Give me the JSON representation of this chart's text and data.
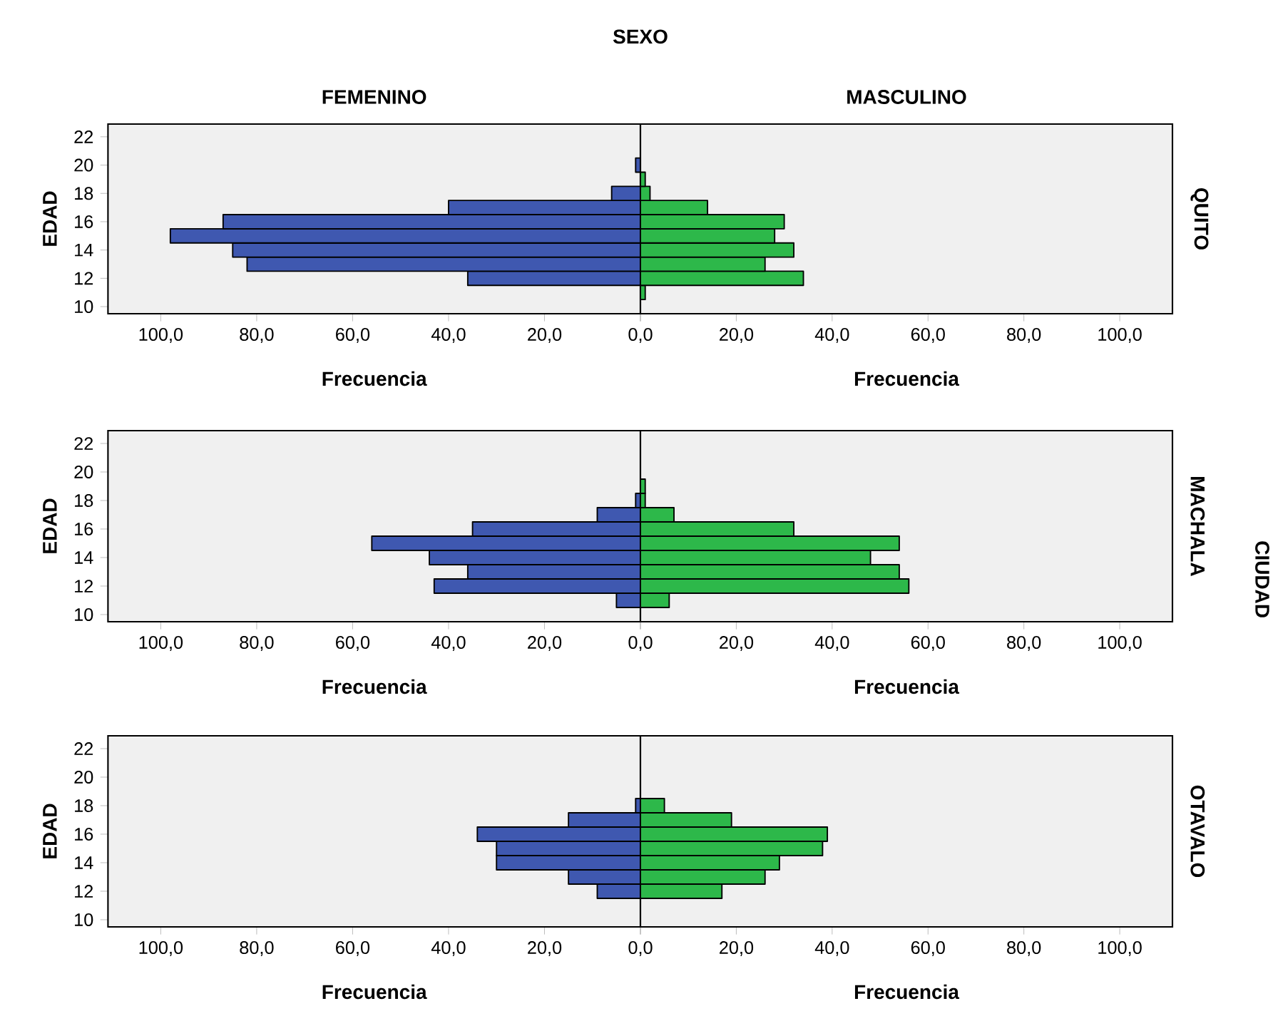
{
  "chart_data": [
    {
      "type": "histogram",
      "orientation": "horizontal",
      "title": "FEMENINO",
      "xlabel": "Frecuencia",
      "ylabel": "EDAD",
      "annotations": [
        "SEXO"
      ],
      "color": "#3f58b0",
      "bins": [
        10.5,
        11.5,
        12.5,
        13.5,
        14.5,
        15.5,
        16.5,
        17.5,
        18.5,
        19.5,
        20.5
      ],
      "values": [
        0,
        36,
        82,
        85,
        98,
        87,
        40,
        6,
        0,
        1
      ],
      "xlim": [
        111,
        0
      ],
      "xticks": [
        {
          "value": 100,
          "label": "100,0"
        },
        {
          "value": 80,
          "label": "80,0"
        },
        {
          "value": 60,
          "label": "60,0"
        },
        {
          "value": 40,
          "label": "40,0"
        },
        {
          "value": 20,
          "label": "20,0"
        },
        {
          "value": 0,
          "label": null
        }
      ],
      "ylim": [
        9.5,
        22.9
      ],
      "yticks": [
        10,
        12,
        14,
        16,
        18,
        20,
        22
      ]
    },
    {
      "type": "histogram",
      "orientation": "horizontal",
      "title": "MASCULINO",
      "xlabel": "Frecuencia",
      "y2label": "QUITO",
      "color": "#2db84a",
      "bins": [
        10.5,
        11.5,
        12.5,
        13.5,
        14.5,
        15.5,
        16.5,
        17.5,
        18.5,
        19.5,
        20.5
      ],
      "values": [
        1,
        34,
        26,
        32,
        28,
        30,
        14,
        2,
        1,
        0
      ],
      "xlim": [
        0,
        111
      ],
      "xticks": [
        {
          "value": 0,
          "label": "0,0"
        },
        {
          "value": 20,
          "label": "20,0"
        },
        {
          "value": 40,
          "label": "40,0"
        },
        {
          "value": 60,
          "label": "60,0"
        },
        {
          "value": 80,
          "label": "80,0"
        },
        {
          "value": 100,
          "label": "100,0"
        }
      ],
      "ylim": [
        9.5,
        22.9
      ],
      "tick_labels": "x"
    },
    {
      "type": "histogram",
      "orientation": "horizontal",
      "xlabel": "Frecuencia",
      "ylabel": "EDAD",
      "color": "#3f58b0",
      "bins": [
        10.5,
        11.5,
        12.5,
        13.5,
        14.5,
        15.5,
        16.5,
        17.5,
        18.5,
        19.5
      ],
      "values": [
        5,
        43,
        36,
        44,
        56,
        35,
        9,
        1,
        0
      ],
      "xlim": [
        111,
        0
      ],
      "xticks": [
        {
          "value": 100,
          "label": "100,0"
        },
        {
          "value": 80,
          "label": "80,0"
        },
        {
          "value": 60,
          "label": "60,0"
        },
        {
          "value": 40,
          "label": "40,0"
        },
        {
          "value": 20,
          "label": "20,0"
        },
        {
          "value": 0,
          "label": null
        }
      ],
      "ylim": [
        9.5,
        22.9
      ],
      "yticks": [
        10,
        12,
        14,
        16,
        18,
        20,
        22
      ]
    },
    {
      "type": "histogram",
      "orientation": "horizontal",
      "xlabel": "Frecuencia",
      "y2label": "MACHALA",
      "annotations": [
        "CIUDAD"
      ],
      "color": "#2db84a",
      "bins": [
        10.5,
        11.5,
        12.5,
        13.5,
        14.5,
        15.5,
        16.5,
        17.5,
        18.5,
        19.5
      ],
      "values": [
        6,
        56,
        54,
        48,
        54,
        32,
        7,
        1,
        1
      ],
      "xlim": [
        0,
        111
      ],
      "xticks": [
        {
          "value": 0,
          "label": "0,0"
        },
        {
          "value": 20,
          "label": "20,0"
        },
        {
          "value": 40,
          "label": "40,0"
        },
        {
          "value": 60,
          "label": "60,0"
        },
        {
          "value": 80,
          "label": "80,0"
        },
        {
          "value": 100,
          "label": "100,0"
        }
      ],
      "ylim": [
        9.5,
        22.9
      ],
      "tick_labels": "x"
    },
    {
      "type": "histogram",
      "orientation": "horizontal",
      "xlabel": "Frecuencia",
      "ylabel": "EDAD",
      "color": "#3f58b0",
      "bins": [
        11.5,
        12.5,
        13.5,
        14.5,
        15.5,
        16.5,
        17.5,
        18.5
      ],
      "values": [
        9,
        15,
        30,
        30,
        34,
        15,
        1
      ],
      "xlim": [
        111,
        0
      ],
      "xticks": [
        {
          "value": 100,
          "label": "100,0"
        },
        {
          "value": 80,
          "label": "80,0"
        },
        {
          "value": 60,
          "label": "60,0"
        },
        {
          "value": 40,
          "label": "40,0"
        },
        {
          "value": 20,
          "label": "20,0"
        },
        {
          "value": 0,
          "label": null
        }
      ],
      "ylim": [
        9.5,
        22.9
      ],
      "yticks": [
        10,
        12,
        14,
        16,
        18,
        20,
        22
      ]
    },
    {
      "type": "histogram",
      "orientation": "horizontal",
      "xlabel": "Frecuencia",
      "y2label": "OTAVALO",
      "color": "#2db84a",
      "bins": [
        11.5,
        12.5,
        13.5,
        14.5,
        15.5,
        16.5,
        17.5,
        18.5
      ],
      "values": [
        17,
        26,
        29,
        38,
        39,
        19,
        5
      ],
      "xlim": [
        0,
        111
      ],
      "xticks": [
        {
          "value": 0,
          "label": "0,0"
        },
        {
          "value": 20,
          "label": "20,0"
        },
        {
          "value": 40,
          "label": "40,0"
        },
        {
          "value": 60,
          "label": "60,0"
        },
        {
          "value": 80,
          "label": "80,0"
        },
        {
          "value": 100,
          "label": "100,0"
        }
      ],
      "ylim": [
        9.5,
        22.9
      ],
      "tick_labels": "x"
    }
  ]
}
